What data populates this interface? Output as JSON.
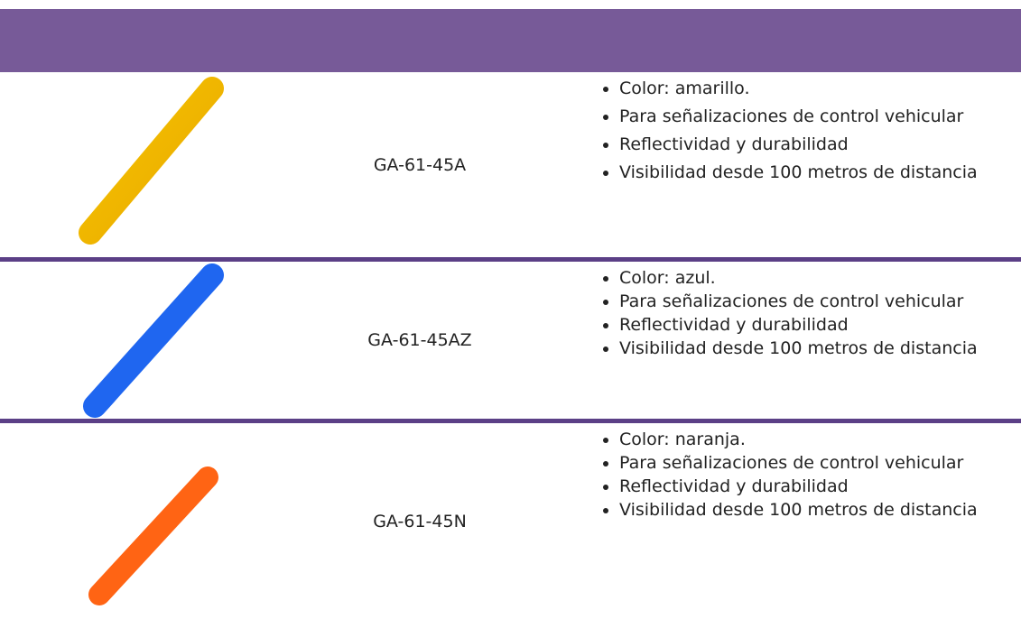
{
  "table": {
    "rows": [
      {
        "code": "GA-61-45A",
        "features": [
          "Color: amarillo.",
          "Para señalizaciones de control vehicular",
          "Reflectividad y durabilidad",
          "Visibilidad desde 100 metros de distancia"
        ]
      },
      {
        "code": "GA-61-45AZ",
        "features": [
          "Color: azul.",
          "Para señalizaciones de control vehicular",
          "Reflectividad y durabilidad",
          "Visibilidad desde 100 metros de distancia"
        ]
      },
      {
        "code": "GA-61-45N",
        "features": [
          "Color: naranja.",
          "Para señalizaciones de control vehicular",
          "Reflectividad y durabilidad",
          "Visibilidad desde 100 metros de distancia"
        ]
      }
    ]
  }
}
